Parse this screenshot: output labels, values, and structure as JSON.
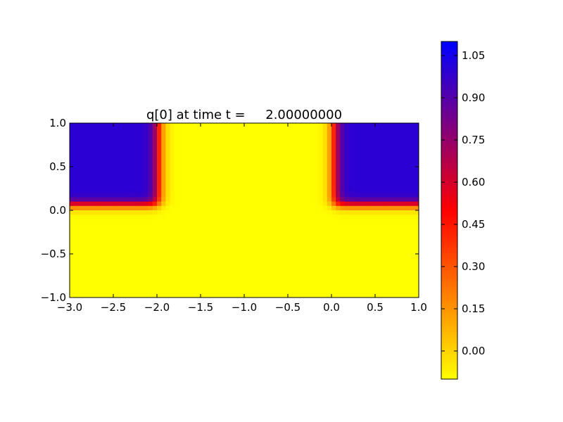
{
  "chart_data": {
    "type": "heatmap",
    "title": "q[0] at time t =     2.00000000",
    "xlabel": "",
    "ylabel": "",
    "xlim": [
      -3.0,
      1.0
    ],
    "ylim": [
      -1.0,
      1.0
    ],
    "xticks": [
      -3.0,
      -2.5,
      -2.0,
      -1.5,
      -1.0,
      -0.5,
      0.0,
      0.5,
      1.0
    ],
    "xtick_labels": [
      "−3.0",
      "−2.5",
      "−2.0",
      "−1.5",
      "−1.0",
      "−0.5",
      "0.0",
      "0.5",
      "1.0"
    ],
    "yticks": [
      -1.0,
      -0.5,
      0.0,
      0.5,
      1.0
    ],
    "ytick_labels": [
      "−1.0",
      "−0.5",
      "0.0",
      "0.5",
      "1.0"
    ],
    "grid": false,
    "field": {
      "description_of_regions": "value ~1.0 in upper-left block (x<-2, y>0) and upper-right block (x>0, y>0); value ~-0.1 elsewhere; smeared transitions",
      "low_value": -0.1,
      "high_value": 1.0,
      "left_block": {
        "x_max": -2.0,
        "y_min": 0.0
      },
      "right_block": {
        "x_min": 0.0,
        "y_min": 0.0
      },
      "grid_nx": 80,
      "grid_ny": 40
    },
    "colorbar": {
      "range": [
        -0.1,
        1.1
      ],
      "ticks": [
        0.0,
        0.15,
        0.3,
        0.45,
        0.6,
        0.75,
        0.9,
        1.05
      ],
      "tick_labels": [
        "0.00",
        "0.15",
        "0.30",
        "0.45",
        "0.60",
        "0.75",
        "0.90",
        "1.05"
      ],
      "colormap_stops": [
        {
          "value": 0.0,
          "color": "#ffff00"
        },
        {
          "value": 0.25,
          "color": "#ff7f00"
        },
        {
          "value": 0.5,
          "color": "#ff0000"
        },
        {
          "value": 0.75,
          "color": "#7f007f"
        },
        {
          "value": 1.0,
          "color": "#0000ff"
        }
      ]
    }
  }
}
